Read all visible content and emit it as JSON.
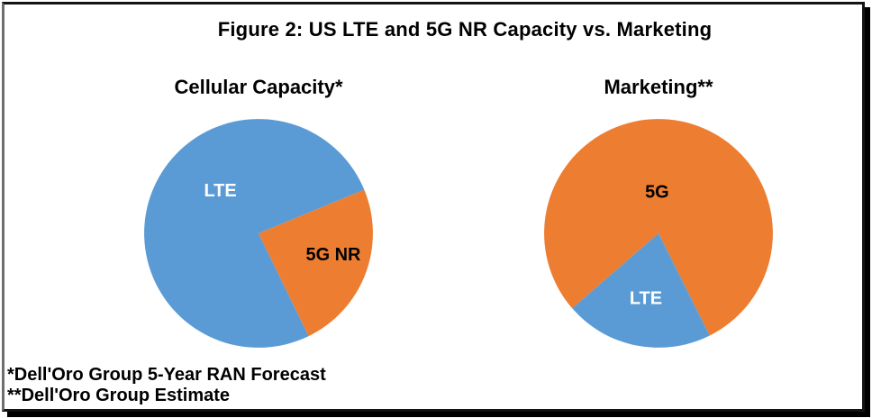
{
  "figure": {
    "title": "Figure 2: US LTE and 5G NR Capacity vs. Marketing"
  },
  "footnotes": {
    "capacity": "*Dell'Oro Group 5-Year RAN Forecast",
    "marketing": "**Dell'Oro Group Estimate"
  },
  "colors": {
    "lte_blue": "#5B9BD5",
    "five_g_orange": "#ED7D31",
    "text": "#000000",
    "background": "#FFFFFF",
    "frame_border": "#141414",
    "frame_shadow": "#000000"
  },
  "chart_data": [
    {
      "type": "pie",
      "title": "Cellular Capacity*",
      "rotation_deg": 154,
      "legend": "none",
      "slices": [
        {
          "label": "LTE",
          "value": 76,
          "color": "#5B9BD5",
          "label_color": "#FFFFFF"
        },
        {
          "label": "5G NR",
          "value": 24,
          "color": "#ED7D31",
          "label_color": "#000000"
        }
      ]
    },
    {
      "type": "pie",
      "title": "Marketing**",
      "rotation_deg": 229,
      "legend": "none",
      "slices": [
        {
          "label": "5G",
          "value": 79,
          "color": "#ED7D31",
          "label_color": "#000000"
        },
        {
          "label": "LTE",
          "value": 21,
          "color": "#5B9BD5",
          "label_color": "#FFFFFF"
        }
      ]
    }
  ]
}
